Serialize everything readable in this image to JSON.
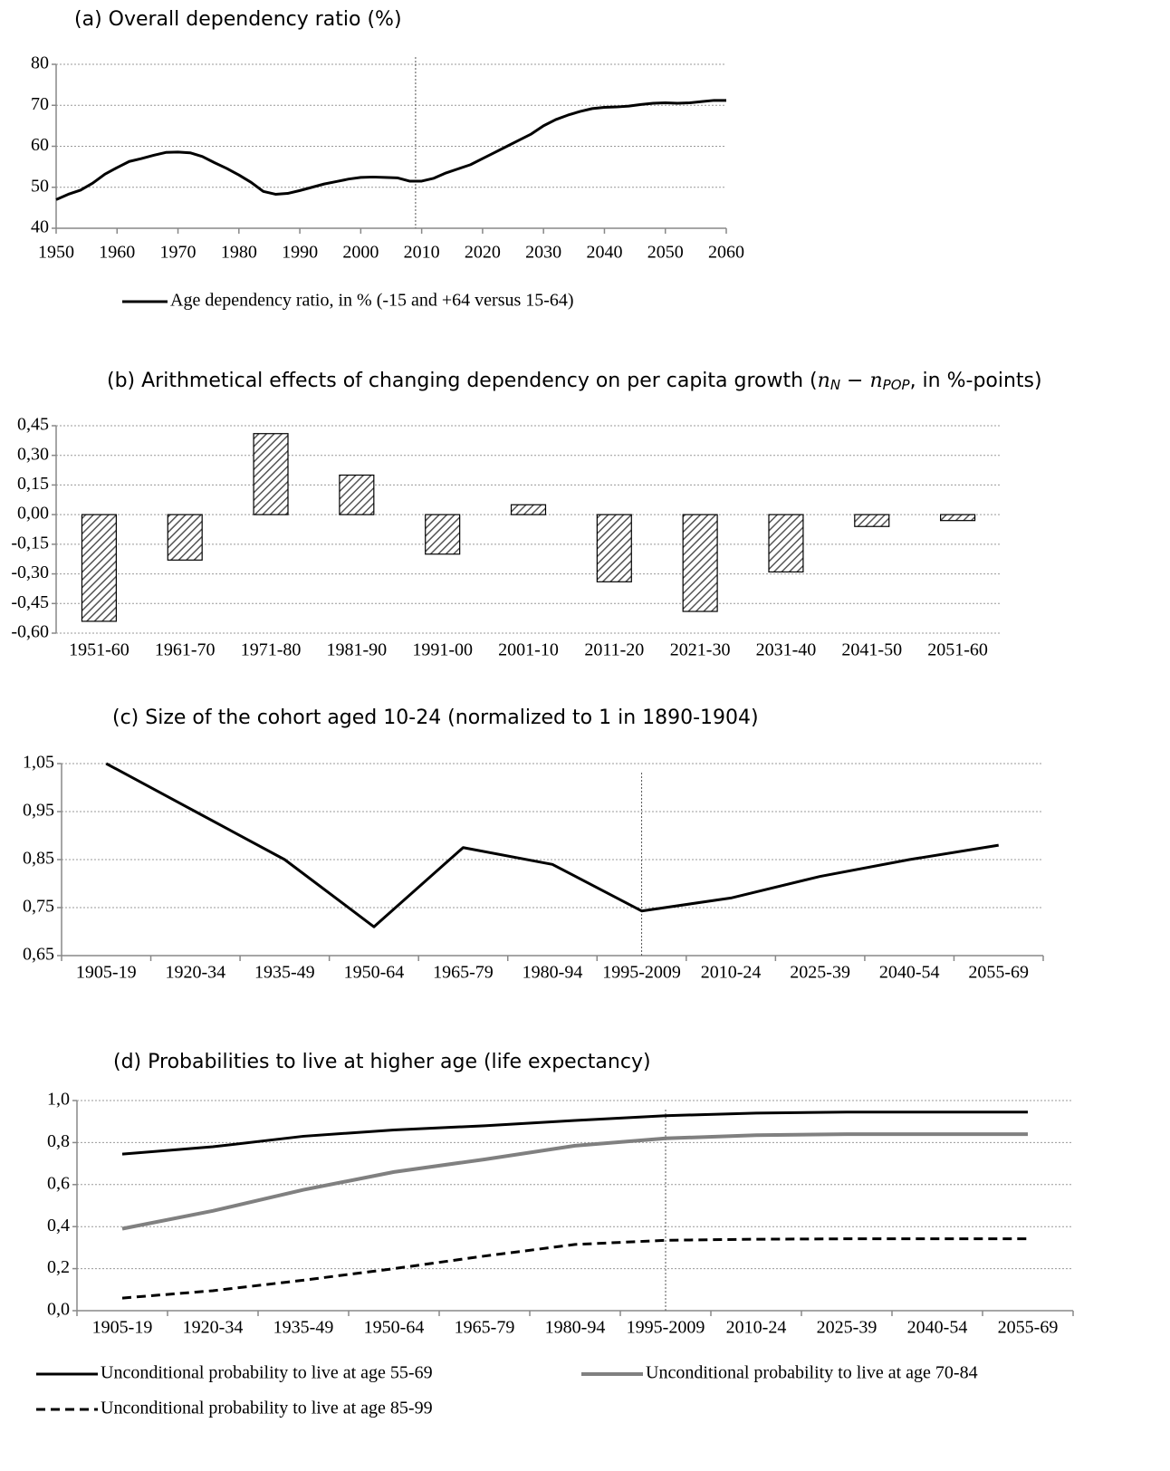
{
  "chart_data": [
    {
      "type": "line",
      "title": "(a)  Overall dependency ratio (%)",
      "x": [
        1950,
        1952,
        1954,
        1956,
        1958,
        1960,
        1962,
        1964,
        1966,
        1968,
        1970,
        1972,
        1974,
        1976,
        1978,
        1980,
        1982,
        1984,
        1986,
        1988,
        1990,
        1992,
        1994,
        1996,
        1998,
        2000,
        2002,
        2004,
        2006,
        2008,
        2010,
        2012,
        2014,
        2016,
        2018,
        2020,
        2022,
        2024,
        2026,
        2028,
        2030,
        2032,
        2034,
        2036,
        2038,
        2040,
        2042,
        2044,
        2046,
        2048,
        2050,
        2052,
        2054,
        2056,
        2058,
        2060
      ],
      "series": [
        {
          "name": "Age dependency ratio, in % (-15 and +64 versus 15-64)",
          "color": "#000000",
          "values": [
            47,
            48.3,
            49.3,
            51,
            53.2,
            54.8,
            56.3,
            57,
            57.8,
            58.5,
            58.6,
            58.4,
            57.5,
            56,
            54.6,
            53,
            51.2,
            49,
            48.3,
            48.5,
            49.2,
            50,
            50.8,
            51.4,
            52,
            52.4,
            52.5,
            52.4,
            52.3,
            51.5,
            51.5,
            52.2,
            53.5,
            54.5,
            55.5,
            57,
            58.5,
            60,
            61.5,
            63,
            65,
            66.5,
            67.6,
            68.5,
            69.2,
            69.5,
            69.6,
            69.8,
            70.2,
            70.5,
            70.6,
            70.5,
            70.6,
            70.9,
            71.2,
            71.2
          ]
        }
      ],
      "xlim": [
        1950,
        2060
      ],
      "xticks": [
        1950,
        1960,
        1970,
        1980,
        1990,
        2000,
        2010,
        2020,
        2030,
        2040,
        2050,
        2060
      ],
      "ylim": [
        40,
        80
      ],
      "yticks": [
        40,
        50,
        60,
        70,
        80
      ],
      "grid": true,
      "vline": 2009
    },
    {
      "type": "bar",
      "title": "(b) Arithmetical effects of changing dependency on per capita growth (",
      "title_math": [
        "n",
        "N",
        " − ",
        "n",
        "POP"
      ],
      "title_tail": ", in %-points)",
      "categories": [
        "1951-60",
        "1961-70",
        "1971-80",
        "1981-90",
        "1991-00",
        "2001-10",
        "2011-20",
        "2021-30",
        "2031-40",
        "2041-50",
        "2051-60"
      ],
      "values": [
        -0.54,
        -0.23,
        0.41,
        0.2,
        -0.2,
        0.05,
        -0.34,
        -0.49,
        -0.29,
        -0.06,
        -0.03
      ],
      "color": "#999999",
      "hatch": true,
      "ylim": [
        -0.6,
        0.45
      ],
      "yticks": [
        {
          "value": -0.6,
          "label": "-0,60"
        },
        {
          "value": -0.45,
          "label": "-0,45"
        },
        {
          "value": -0.3,
          "label": "-0,30"
        },
        {
          "value": -0.15,
          "label": "-0,15"
        },
        {
          "value": 0,
          "label": "0,00"
        },
        {
          "value": 0.15,
          "label": "0,15"
        },
        {
          "value": 0.3,
          "label": "0,30"
        },
        {
          "value": 0.45,
          "label": "0,45"
        }
      ],
      "grid": true
    },
    {
      "type": "line",
      "title": "(c)  Size of the cohort aged 10-24 (normalized to 1 in 1890-1904)",
      "categories": [
        "1905-19",
        "1920-34",
        "1935-49",
        "1950-64",
        "1965-79",
        "1980-94",
        "1995-2009",
        "2010-24",
        "2025-39",
        "2040-54",
        "2055-69"
      ],
      "series": [
        {
          "color": "#000000",
          "values": [
            1.05,
            0.95,
            0.85,
            0.71,
            0.875,
            0.84,
            0.743,
            0.77,
            0.815,
            0.85,
            0.88
          ]
        }
      ],
      "ylim": [
        0.65,
        1.05
      ],
      "yticks": [
        {
          "value": 0.65,
          "label": "0,65"
        },
        {
          "value": 0.75,
          "label": "0,75"
        },
        {
          "value": 0.85,
          "label": "0,85"
        },
        {
          "value": 0.95,
          "label": "0,95"
        },
        {
          "value": 1.05,
          "label": "1,05"
        }
      ],
      "grid": true,
      "vline": 6.5
    },
    {
      "type": "line",
      "title": "(d)  Probabilities to live at higher age (life expectancy)",
      "categories": [
        "1905-19",
        "1920-34",
        "1935-49",
        "1950-64",
        "1965-79",
        "1980-94",
        "1995-2009",
        "2010-24",
        "2025-39",
        "2040-54",
        "2055-69"
      ],
      "series": [
        {
          "name": "Unconditional probability to live at age 55-69",
          "color": "#000000",
          "values": [
            0.745,
            0.78,
            0.83,
            0.86,
            0.88,
            0.905,
            0.928,
            0.94,
            0.945,
            0.945,
            0.945
          ]
        },
        {
          "name": "Unconditional probability to live at age 70-84",
          "color": "#808080",
          "values": [
            0.39,
            0.475,
            0.575,
            0.66,
            0.72,
            0.785,
            0.82,
            0.835,
            0.84,
            0.84,
            0.84
          ]
        },
        {
          "name": "Unconditional probability to live at age 85-99",
          "color": "#000000",
          "dash": true,
          "values": [
            0.06,
            0.095,
            0.145,
            0.2,
            0.26,
            0.315,
            0.335,
            0.34,
            0.342,
            0.342,
            0.342
          ]
        }
      ],
      "ylim": [
        0,
        1
      ],
      "yticks": [
        {
          "value": 0,
          "label": "0,0"
        },
        {
          "value": 0.2,
          "label": "0,2"
        },
        {
          "value": 0.4,
          "label": "0,4"
        },
        {
          "value": 0.6,
          "label": "0,6"
        },
        {
          "value": 0.8,
          "label": "0,8"
        },
        {
          "value": 1,
          "label": "1,0"
        }
      ],
      "grid": true,
      "vline": 6.5
    }
  ]
}
